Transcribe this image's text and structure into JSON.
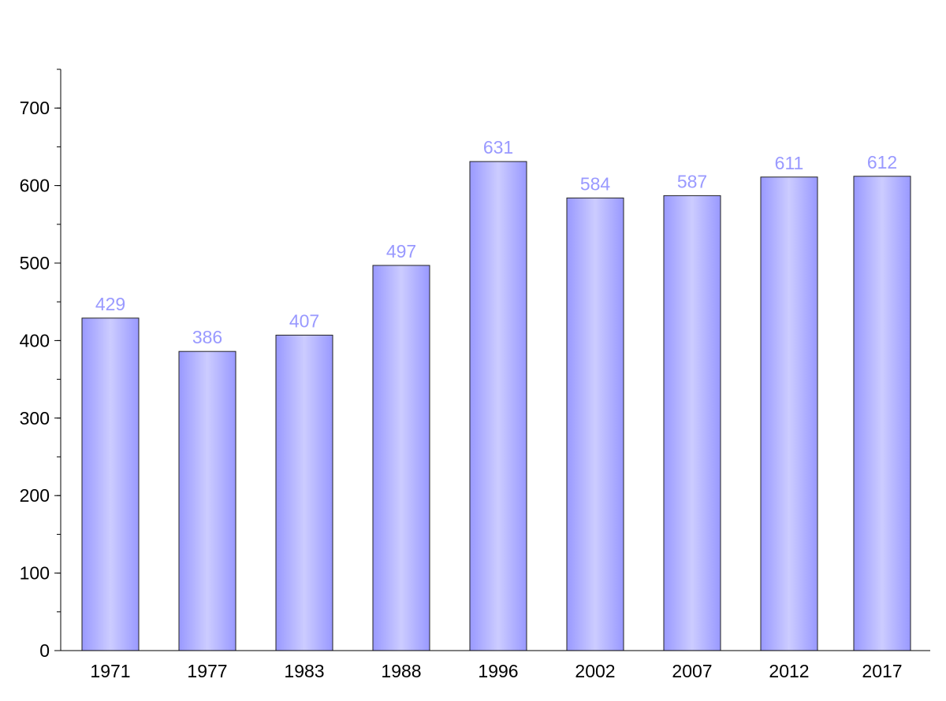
{
  "chart_data": {
    "type": "bar",
    "title": "",
    "xlabel": "",
    "ylabel": "",
    "categories": [
      "1971",
      "1977",
      "1983",
      "1988",
      "1996",
      "2002",
      "2007",
      "2012",
      "2017"
    ],
    "values": [
      429,
      386,
      407,
      497,
      631,
      584,
      587,
      611,
      612
    ],
    "data_labels": [
      "429",
      "386",
      "407",
      "497",
      "631",
      "584",
      "587",
      "611",
      "612"
    ],
    "ylim": [
      0,
      750
    ],
    "y_ticks": [
      0,
      100,
      200,
      300,
      400,
      500,
      600,
      700
    ],
    "y_tick_labels": [
      "0",
      "100",
      "200",
      "300",
      "400",
      "500",
      "600",
      "700"
    ],
    "y_minor_step": 50,
    "grid": false,
    "legend": "none",
    "colors": {
      "bar_edge": "#9999ff",
      "bar_center": "#ccccff",
      "bar_outline": "#222222",
      "data_label": "#9999ff",
      "axis": "#000000"
    }
  }
}
